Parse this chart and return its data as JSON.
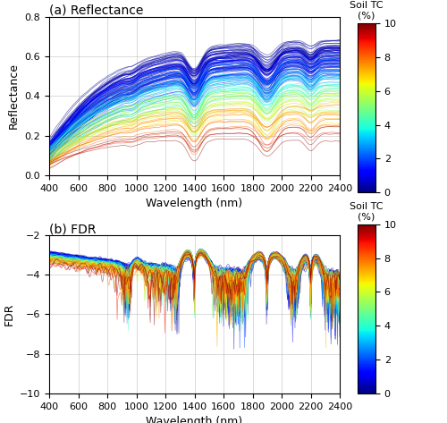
{
  "title_a": "(a) Reflectance",
  "title_b": "(b) FDR",
  "xlabel": "Wavelength (nm)",
  "ylabel_a": "Reflectance",
  "ylabel_b": "FDR",
  "colorbar_label": "Soil TC",
  "colorbar_unit": "(%)",
  "xlim": [
    400,
    2400
  ],
  "ylim_a": [
    0,
    0.8
  ],
  "ylim_b": [
    -10,
    -2
  ],
  "xticks": [
    400,
    600,
    800,
    1000,
    1200,
    1400,
    1600,
    1800,
    2000,
    2200,
    2400
  ],
  "yticks_a": [
    0,
    0.2,
    0.4,
    0.6,
    0.8
  ],
  "yticks_b": [
    -10,
    -8,
    -6,
    -4,
    -2
  ],
  "colorbar_ticks": [
    0,
    2,
    4,
    6,
    8,
    10
  ],
  "n_samples": 150,
  "tc_min": 0,
  "tc_max": 10,
  "wl_start": 400,
  "wl_end": 2400,
  "wl_step": 4,
  "alpha": 0.55,
  "linewidth": 0.5,
  "figsize": [
    5.0,
    4.73
  ],
  "dpi": 100
}
